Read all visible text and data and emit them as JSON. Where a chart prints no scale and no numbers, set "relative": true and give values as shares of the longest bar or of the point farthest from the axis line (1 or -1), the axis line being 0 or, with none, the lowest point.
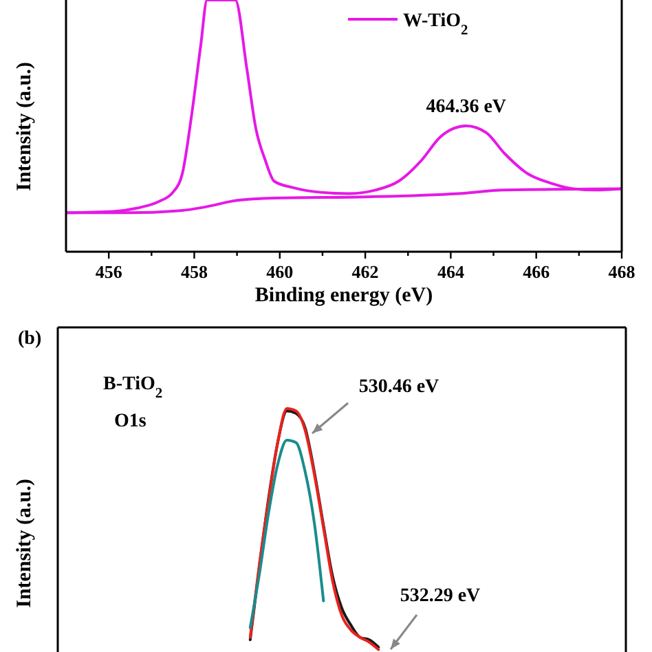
{
  "chart_data": [
    {
      "type": "line",
      "relative": true,
      "xlabel": "Binding energy (eV)",
      "ylabel": "Intensity (a.u.)",
      "xlim": [
        455,
        468
      ],
      "xticks": [
        456,
        {
          "value": 457,
          "label": null
        },
        458,
        {
          "value": 459,
          "label": null
        },
        460,
        {
          "value": 461,
          "label": null
        },
        462,
        {
          "value": 463,
          "label": null
        },
        464,
        {
          "value": 465,
          "label": null
        },
        466,
        {
          "value": 467,
          "label": null
        },
        468
      ],
      "tick_labels": "x",
      "legend": "top right",
      "annotations": [
        {
          "text": "464.36 eV",
          "x": 464.36,
          "y": 0.5
        }
      ],
      "series": [
        {
          "name": "W-TiO$_{2}$",
          "color": "#e619e6",
          "x": [
            455,
            456.1,
            456.65,
            457.18,
            457.5,
            457.72,
            457.94,
            458.15,
            458.3,
            458.96,
            459.23,
            459.44,
            459.66,
            459.87,
            460.3,
            460.95,
            461.6,
            462.24,
            462.78,
            463.32,
            463.75,
            464.07,
            464.36,
            464.83,
            465.26,
            465.8,
            466.33,
            466.87,
            467.4,
            468
          ],
          "values": [
            0.155,
            0.16,
            0.173,
            0.2,
            0.236,
            0.31,
            0.545,
            0.818,
            1,
            1,
            0.727,
            0.49,
            0.364,
            0.28,
            0.255,
            0.236,
            0.231,
            0.245,
            0.28,
            0.364,
            0.455,
            0.49,
            0.5,
            0.473,
            0.39,
            0.31,
            0.273,
            0.25,
            0.245,
            0.25
          ]
        },
        {
          "color": "#e619e6",
          "x": [
            455,
            456.5,
            457.72,
            458.26,
            459.01,
            459.87,
            462.03,
            464.18,
            465.26,
            468
          ],
          "values": [
            0.155,
            0.155,
            0.164,
            0.178,
            0.204,
            0.213,
            0.218,
            0.231,
            0.245,
            0.25
          ]
        }
      ]
    },
    {
      "type": "line",
      "relative": true,
      "ylabel": "Intensity (a.u.)",
      "tick_labels": false,
      "annotations": [
        "(b)",
        "B-TiO$_{2}$",
        "O1s",
        "530.46 eV",
        "532.29 eV"
      ],
      "categories": [
        null,
        null,
        null,
        null,
        null,
        null,
        null,
        null,
        null,
        null,
        null,
        null,
        null,
        null,
        null,
        null,
        null,
        null,
        null,
        null,
        null,
        null,
        null,
        null,
        null,
        null,
        null,
        null,
        null,
        null,
        null,
        null,
        null,
        null,
        null,
        null,
        null,
        null,
        null,
        null,
        null,
        null,
        null,
        null,
        null,
        null,
        null,
        null,
        null,
        null,
        null,
        null,
        null,
        null,
        null,
        null,
        null,
        null,
        null,
        null,
        null,
        null,
        null
      ],
      "series": [
        {
          "color": "#1a1a1a",
          "values": [
            null,
            null,
            null,
            null,
            null,
            null,
            null,
            null,
            null,
            null,
            null,
            null,
            null,
            null,
            null,
            null,
            null,
            null,
            null,
            null,
            null,
            0.05,
            0.35,
            0.63,
            0.86,
            0.99,
            0.98,
            0.92,
            0.74,
            0.52,
            0.31,
            0.18,
            0.11,
            0.06,
            0.05,
            0.02,
            null,
            null,
            null,
            null,
            null,
            null,
            null,
            null,
            null,
            null,
            null,
            null,
            null,
            null,
            null,
            null,
            null,
            null,
            null,
            null,
            null,
            null,
            null,
            null,
            null,
            null,
            null
          ]
        },
        {
          "color": "#e8231e",
          "values": [
            null,
            null,
            null,
            null,
            null,
            null,
            null,
            null,
            null,
            null,
            null,
            null,
            null,
            null,
            null,
            null,
            null,
            null,
            null,
            null,
            null,
            0.06,
            0.36,
            0.62,
            0.86,
            1,
            0.99,
            0.91,
            0.73,
            0.51,
            0.29,
            0.15,
            0.09,
            0.06,
            0.04,
            0.01,
            null,
            null,
            null,
            null,
            null,
            null,
            null,
            null,
            null,
            null,
            null,
            null,
            null,
            null,
            null,
            null,
            null,
            null,
            null,
            null,
            null,
            null,
            null,
            null,
            null,
            null,
            null
          ]
        },
        {
          "color": "#1a8c8c",
          "values": [
            null,
            null,
            null,
            null,
            null,
            null,
            null,
            null,
            null,
            null,
            null,
            null,
            null,
            null,
            null,
            null,
            null,
            null,
            null,
            null,
            null,
            0.1,
            0.32,
            0.57,
            0.77,
            0.87,
            0.86,
            0.74,
            0.53,
            0.21,
            null,
            null,
            null,
            null,
            null,
            null,
            null,
            null,
            null,
            null,
            null,
            null,
            null,
            null,
            null,
            null,
            null,
            null,
            null,
            null,
            null,
            null,
            null,
            null,
            null,
            null,
            null,
            null,
            null,
            null,
            null,
            null,
            null
          ]
        }
      ]
    }
  ]
}
